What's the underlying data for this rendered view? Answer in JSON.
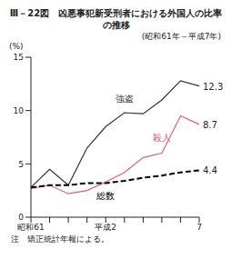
{
  "chart_data": {
    "type": "line",
    "title": "Ⅲ－22図　凶悪事犯新受刑者における外国人の比率の推移",
    "subtitle": "(昭和61年～平成7年)",
    "y_label": "(%)",
    "note": "注　矯正統計年報による。",
    "categories": [
      "昭和61",
      null,
      null,
      null,
      "平成2",
      null,
      null,
      null,
      null,
      "7"
    ],
    "series": [
      {
        "name": "強盗",
        "color": "#333333",
        "line_style": "solid",
        "values": [
          2.8,
          4.5,
          3.0,
          6.5,
          8.5,
          9.8,
          9.7,
          11.0,
          12.8,
          12.3
        ],
        "end_label": "12.3"
      },
      {
        "name": "殺人",
        "color": "#e06070",
        "line_style": "solid",
        "values": [
          2.7,
          3.0,
          2.2,
          2.5,
          3.3,
          4.2,
          5.6,
          6.0,
          9.5,
          8.7
        ],
        "end_label": "8.7"
      },
      {
        "name": "総数",
        "color": "#000000",
        "line_style": "dashed",
        "values": [
          2.8,
          3.0,
          3.0,
          3.2,
          3.2,
          3.4,
          3.7,
          3.9,
          4.2,
          4.4
        ],
        "end_label": "4.4"
      }
    ],
    "ylim": [
      0,
      15
    ],
    "yticks": [
      0,
      5,
      10,
      15
    ],
    "grid": false
  }
}
